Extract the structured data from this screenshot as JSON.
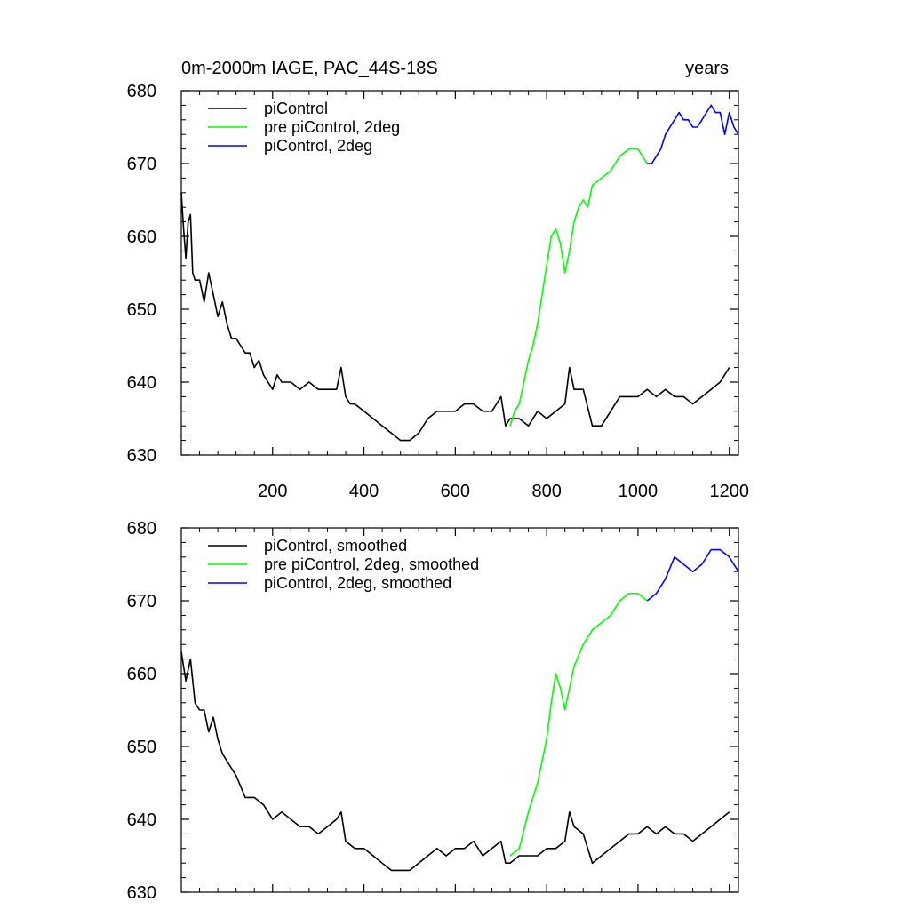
{
  "chart_data": [
    {
      "type": "line",
      "title": "0m-2000m IAGE, PAC_44S-18S",
      "title_right": "years",
      "xlim": [
        0,
        1220
      ],
      "ylim": [
        630,
        680
      ],
      "x_ticks": [
        200,
        400,
        600,
        800,
        1000,
        1200
      ],
      "y_ticks": [
        630,
        640,
        650,
        660,
        670,
        680
      ],
      "x_tick_labels": [
        "200",
        "400",
        "600",
        "800",
        "1000",
        "1200"
      ],
      "y_tick_labels": [
        "630",
        "640",
        "650",
        "660",
        "670",
        "680"
      ],
      "grid": false,
      "legend_position": "top-left",
      "series": [
        {
          "name": "piControl",
          "color": "#000000",
          "x": [
            0,
            5,
            10,
            15,
            20,
            25,
            30,
            40,
            50,
            60,
            70,
            80,
            90,
            100,
            110,
            120,
            130,
            140,
            150,
            160,
            170,
            180,
            190,
            200,
            210,
            220,
            240,
            260,
            280,
            300,
            320,
            340,
            350,
            360,
            370,
            380,
            400,
            420,
            440,
            460,
            480,
            500,
            520,
            540,
            560,
            580,
            600,
            620,
            640,
            660,
            680,
            700,
            710,
            720,
            740,
            760,
            780,
            800,
            820,
            840,
            850,
            860,
            880,
            900,
            920,
            940,
            960,
            980,
            1000,
            1020,
            1040,
            1060,
            1080,
            1100,
            1120,
            1140,
            1160,
            1180,
            1200
          ],
          "y": [
            666,
            661,
            657,
            662,
            663,
            655,
            654,
            654,
            651,
            655,
            652,
            649,
            651,
            648,
            646,
            646,
            645,
            644,
            644,
            642,
            643,
            641,
            640,
            639,
            641,
            640,
            640,
            639,
            640,
            639,
            639,
            639,
            642,
            638,
            637,
            637,
            636,
            635,
            634,
            633,
            632,
            632,
            633,
            635,
            636,
            636,
            636,
            637,
            637,
            636,
            636,
            638,
            634,
            635,
            635,
            634,
            636,
            635,
            636,
            637,
            642,
            639,
            639,
            634,
            634,
            636,
            638,
            638,
            638,
            639,
            638,
            639,
            638,
            638,
            637,
            638,
            639,
            640,
            642
          ]
        },
        {
          "name": "pre piControl, 2deg",
          "color": "#00ff00",
          "x": [
            720,
            730,
            740,
            750,
            760,
            770,
            780,
            790,
            800,
            810,
            820,
            830,
            840,
            850,
            860,
            870,
            880,
            890,
            900,
            920,
            940,
            960,
            980,
            1000,
            1020
          ],
          "y": [
            634,
            636,
            637,
            640,
            643,
            645,
            648,
            652,
            656,
            660,
            661,
            659,
            655,
            658,
            662,
            664,
            665,
            664,
            667,
            668,
            669,
            671,
            672,
            672,
            670
          ]
        },
        {
          "name": "piControl, 2deg",
          "color": "#0000ff",
          "x": [
            1020,
            1030,
            1040,
            1050,
            1060,
            1070,
            1080,
            1090,
            1100,
            1110,
            1120,
            1130,
            1140,
            1150,
            1160,
            1170,
            1180,
            1190,
            1200,
            1210,
            1220
          ],
          "y": [
            670,
            670,
            671,
            672,
            674,
            675,
            676,
            677,
            676,
            676,
            675,
            675,
            676,
            677,
            678,
            677,
            677,
            674,
            677,
            675,
            674
          ]
        }
      ]
    },
    {
      "type": "line",
      "xlim": [
        0,
        1220
      ],
      "ylim": [
        630,
        680
      ],
      "x_ticks": [
        200,
        400,
        600,
        800,
        1000,
        1200
      ],
      "y_ticks": [
        630,
        640,
        650,
        660,
        670,
        680
      ],
      "y_tick_labels": [
        "630",
        "640",
        "650",
        "660",
        "670",
        "680"
      ],
      "grid": false,
      "legend_position": "top-left",
      "series": [
        {
          "name": "piControl, smoothed",
          "color": "#000000",
          "x": [
            0,
            10,
            20,
            30,
            40,
            50,
            60,
            70,
            80,
            90,
            100,
            120,
            140,
            160,
            180,
            200,
            220,
            240,
            260,
            280,
            300,
            320,
            340,
            350,
            360,
            380,
            400,
            420,
            440,
            460,
            480,
            500,
            520,
            540,
            560,
            580,
            600,
            620,
            640,
            660,
            680,
            700,
            710,
            720,
            740,
            760,
            780,
            800,
            820,
            840,
            850,
            860,
            880,
            900,
            920,
            940,
            960,
            980,
            1000,
            1020,
            1040,
            1060,
            1080,
            1100,
            1120,
            1140,
            1160,
            1180,
            1200
          ],
          "y": [
            663,
            659,
            662,
            656,
            655,
            655,
            652,
            654,
            651,
            649,
            648,
            646,
            643,
            643,
            642,
            640,
            641,
            640,
            639,
            639,
            638,
            639,
            640,
            641,
            637,
            636,
            636,
            635,
            634,
            633,
            633,
            633,
            634,
            635,
            636,
            635,
            636,
            636,
            637,
            635,
            636,
            637,
            634,
            634,
            635,
            635,
            635,
            636,
            636,
            637,
            641,
            639,
            638,
            634,
            635,
            636,
            637,
            638,
            638,
            639,
            638,
            639,
            638,
            638,
            637,
            638,
            639,
            640,
            641
          ]
        },
        {
          "name": "pre piControl, 2deg, smoothed",
          "color": "#00ff00",
          "x": [
            720,
            740,
            760,
            780,
            800,
            810,
            820,
            830,
            840,
            850,
            860,
            880,
            900,
            920,
            940,
            960,
            980,
            1000,
            1020
          ],
          "y": [
            635,
            636,
            641,
            645,
            651,
            656,
            660,
            658,
            655,
            658,
            661,
            664,
            666,
            667,
            668,
            670,
            671,
            671,
            670
          ]
        },
        {
          "name": "piControl, 2deg, smoothed",
          "color": "#0000ff",
          "x": [
            1020,
            1040,
            1060,
            1080,
            1100,
            1120,
            1140,
            1160,
            1180,
            1200,
            1220
          ],
          "y": [
            670,
            671,
            673,
            676,
            675,
            674,
            675,
            677,
            677,
            676,
            674
          ]
        }
      ]
    }
  ]
}
